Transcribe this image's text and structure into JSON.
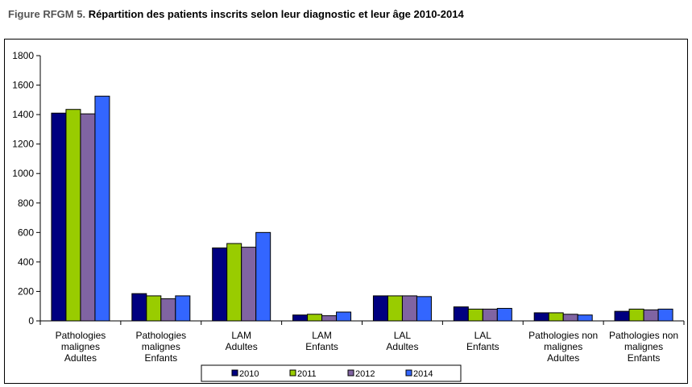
{
  "title": {
    "prefix": "Figure RFGM 5.",
    "text": "Répartition des patients inscrits selon leur diagnostic et leur âge 2010-2014"
  },
  "chart_data": {
    "type": "bar",
    "title": "Répartition des patients inscrits selon leur diagnostic et leur âge 2010-2014",
    "categories": [
      [
        "Pathologies",
        "malignes",
        "Adultes"
      ],
      [
        "Pathologies",
        "malignes",
        "Enfants"
      ],
      [
        "LAM",
        "Adultes"
      ],
      [
        "LAM",
        "Enfants"
      ],
      [
        "LAL",
        "Adultes"
      ],
      [
        "LAL",
        "Enfants"
      ],
      [
        "Pathologies non",
        "malignes",
        "Adultes"
      ],
      [
        "Pathologies non",
        "malignes",
        "Enfants"
      ]
    ],
    "series": [
      {
        "name": "2010",
        "color": "#000080",
        "values": [
          1410,
          185,
          495,
          40,
          170,
          95,
          55,
          65
        ]
      },
      {
        "name": "2011",
        "color": "#99CC00",
        "values": [
          1435,
          170,
          525,
          45,
          170,
          80,
          55,
          80
        ]
      },
      {
        "name": "2012",
        "color": "#8064A2",
        "values": [
          1405,
          150,
          500,
          35,
          170,
          80,
          45,
          75
        ]
      },
      {
        "name": "2014",
        "color": "#3366FF",
        "values": [
          1525,
          170,
          600,
          60,
          165,
          85,
          40,
          80
        ]
      }
    ],
    "ylim": [
      0,
      1800
    ],
    "yticks": [
      0,
      200,
      400,
      600,
      800,
      1000,
      1200,
      1400,
      1600,
      1800
    ],
    "grid": false,
    "legend_position": "bottom"
  }
}
